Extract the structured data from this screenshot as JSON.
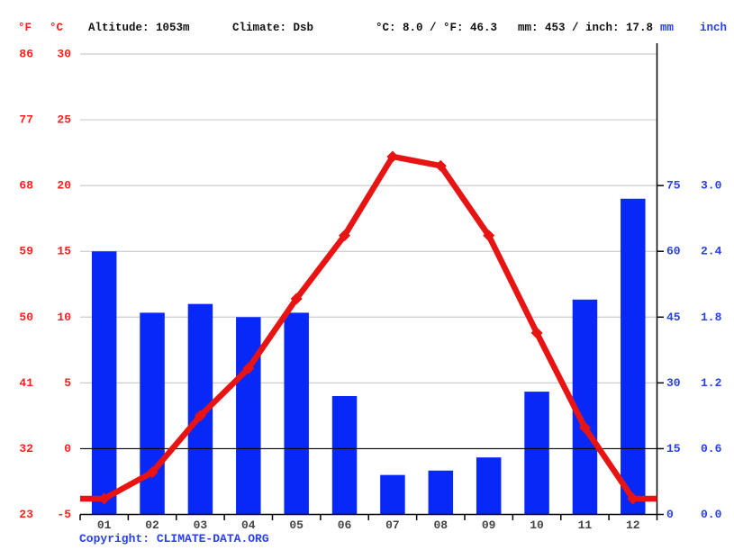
{
  "header": {
    "unit_f": "°F",
    "unit_c": "°C",
    "altitude": "Altitude: 1053m",
    "climate": "Climate: Dsb",
    "avg_temp": "°C: 8.0 / °F: 46.3",
    "precip_total": "mm: 453 / inch: 17.8",
    "unit_mm": "mm",
    "unit_inch": "inch"
  },
  "copyright": {
    "prefix": "Copyright:",
    "link": "CLIMATE-DATA.ORG"
  },
  "colors": {
    "bar_blue": "#0828f8",
    "line_red": "#e81414",
    "red_label": "#ff1f1f",
    "blue_label": "#2940ee",
    "grid_gray": "#cccccc",
    "axis_black": "#000000",
    "month_label": "#444444"
  },
  "chart_data": {
    "type": "bar+line climograph",
    "categories": [
      "01",
      "02",
      "03",
      "04",
      "05",
      "06",
      "07",
      "08",
      "09",
      "10",
      "11",
      "12"
    ],
    "series": [
      {
        "name": "precipitation_mm",
        "type": "bar",
        "values": [
          60,
          46,
          48,
          45,
          46,
          27,
          9,
          10,
          13,
          28,
          49,
          72
        ]
      },
      {
        "name": "temperature_c",
        "type": "line",
        "values": [
          -3.8,
          -1.8,
          2.5,
          6.1,
          11.4,
          16.2,
          22.2,
          21.5,
          16.2,
          8.8,
          1.6,
          -3.8
        ]
      }
    ],
    "summary": {
      "mean_temp_c": 8.0,
      "mean_temp_f": 46.3,
      "total_precip_mm": 453,
      "total_precip_inch": 17.8
    },
    "left_axis": {
      "f_ticks": [
        "86",
        "77",
        "68",
        "59",
        "50",
        "41",
        "32",
        "23"
      ],
      "c_ticks": [
        "30",
        "25",
        "20",
        "15",
        "10",
        "5",
        "0",
        "-5"
      ]
    },
    "right_axis": {
      "mm_ticks": [
        "75",
        "60",
        "45",
        "30",
        "15",
        "0"
      ],
      "inch_ticks": [
        "3.0",
        "2.4",
        "1.8",
        "1.2",
        "0.6",
        "0.0"
      ]
    },
    "temp_axis_range_c": [
      -5,
      30
    ],
    "precip_axis_range_mm": [
      0,
      105
    ],
    "grid": "horizontal gray gridlines every 5°C/15mm; 0°C line black; legend none"
  }
}
